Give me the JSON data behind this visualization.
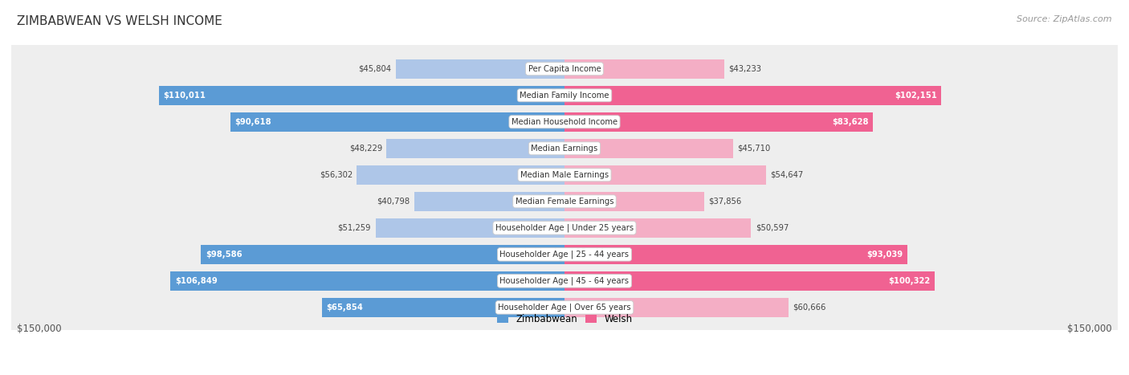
{
  "title": "ZIMBABWEAN VS WELSH INCOME",
  "source": "Source: ZipAtlas.com",
  "categories": [
    "Per Capita Income",
    "Median Family Income",
    "Median Household Income",
    "Median Earnings",
    "Median Male Earnings",
    "Median Female Earnings",
    "Householder Age | Under 25 years",
    "Householder Age | 25 - 44 years",
    "Householder Age | 45 - 64 years",
    "Householder Age | Over 65 years"
  ],
  "zimbabwean_values": [
    45804,
    110011,
    90618,
    48229,
    56302,
    40798,
    51259,
    98586,
    106849,
    65854
  ],
  "welsh_values": [
    43233,
    102151,
    83628,
    45710,
    54647,
    37856,
    50597,
    93039,
    100322,
    60666
  ],
  "zimbabwean_labels": [
    "$45,804",
    "$110,011",
    "$90,618",
    "$48,229",
    "$56,302",
    "$40,798",
    "$51,259",
    "$98,586",
    "$106,849",
    "$65,854"
  ],
  "welsh_labels": [
    "$43,233",
    "$102,151",
    "$83,628",
    "$45,710",
    "$54,647",
    "$37,856",
    "$50,597",
    "$93,039",
    "$100,322",
    "$60,666"
  ],
  "max_value": 150000,
  "zimbabwean_color_strong": "#5b9bd5",
  "zimbabwean_color_light": "#aec6e8",
  "welsh_color_strong": "#f06292",
  "welsh_color_light": "#f4aec5",
  "row_bg": "#eeeeee",
  "legend_zim": "Zimbabwean",
  "legend_welsh": "Welsh",
  "axis_label_left": "$150,000",
  "axis_label_right": "$150,000",
  "strong_threshold": 65000
}
